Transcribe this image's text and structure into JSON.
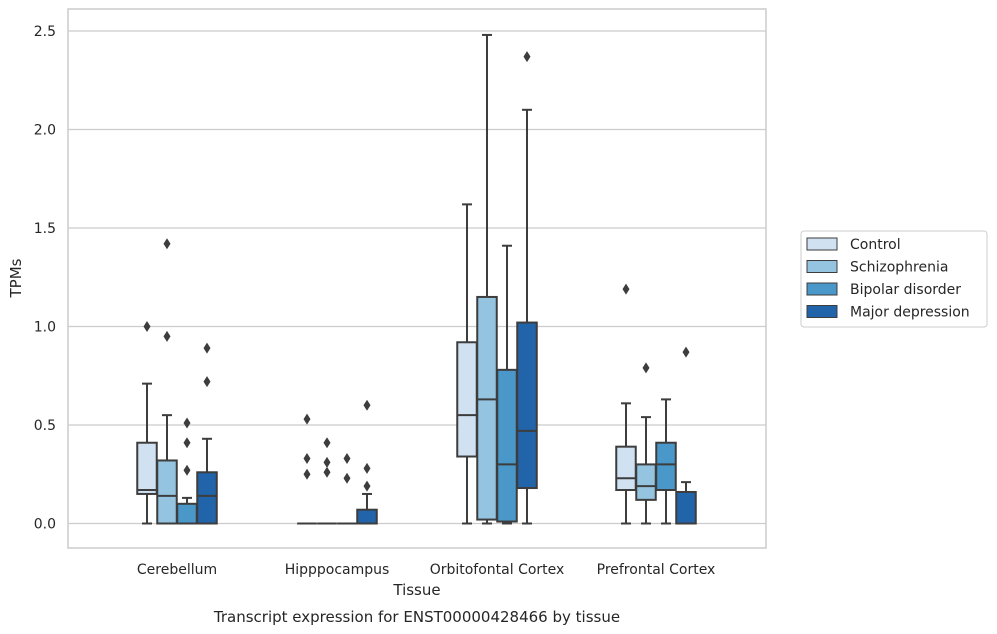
{
  "chart_data": {
    "type": "box",
    "title": "",
    "xlabel": "Tissue",
    "ylabel": "TPMs",
    "caption": "Transcript expression for ENST00000428466 by tissue",
    "ylim": [
      -0.12,
      2.62
    ],
    "yticks": [
      0.0,
      0.5,
      1.0,
      1.5,
      2.0,
      2.5
    ],
    "ytick_labels": [
      "0.0",
      "0.5",
      "1.0",
      "1.5",
      "2.0",
      "2.5"
    ],
    "grid": "horizontal",
    "legend_position": "right",
    "categories": [
      "Cerebellum",
      "Hipppocampus",
      "Orbitofontal Cortex",
      "Prefrontal Cortex"
    ],
    "series": [
      {
        "name": "Control",
        "color": "#d0e1f2",
        "boxes": [
          {
            "min": 0.0,
            "q1": 0.15,
            "median": 0.17,
            "q3": 0.41,
            "max": 0.71,
            "outliers": [
              1.0
            ]
          },
          {
            "min": 0.0,
            "q1": 0.0,
            "median": 0.0,
            "q3": 0.0,
            "max": 0.0,
            "outliers": [
              0.25,
              0.33,
              0.53
            ]
          },
          {
            "min": 0.0,
            "q1": 0.34,
            "median": 0.55,
            "q3": 0.92,
            "max": 1.62,
            "outliers": []
          },
          {
            "min": 0.0,
            "q1": 0.17,
            "median": 0.23,
            "q3": 0.39,
            "max": 0.61,
            "outliers": [
              1.19
            ]
          }
        ]
      },
      {
        "name": "Schizophrenia",
        "color": "#94c4df",
        "boxes": [
          {
            "min": 0.0,
            "q1": 0.0,
            "median": 0.14,
            "q3": 0.32,
            "max": 0.55,
            "outliers": [
              0.95,
              1.42
            ]
          },
          {
            "min": 0.0,
            "q1": 0.0,
            "median": 0.0,
            "q3": 0.0,
            "max": 0.0,
            "outliers": [
              0.26,
              0.31,
              0.41
            ]
          },
          {
            "min": 0.0,
            "q1": 0.02,
            "median": 0.63,
            "q3": 1.15,
            "max": 2.48,
            "outliers": []
          },
          {
            "min": 0.0,
            "q1": 0.12,
            "median": 0.19,
            "q3": 0.3,
            "max": 0.54,
            "outliers": [
              0.79
            ]
          }
        ]
      },
      {
        "name": "Bipolar disorder",
        "color": "#4a98c9",
        "boxes": [
          {
            "min": 0.0,
            "q1": 0.0,
            "median": 0.0,
            "q3": 0.1,
            "max": 0.13,
            "outliers": [
              0.27,
              0.41,
              0.51
            ]
          },
          {
            "min": 0.0,
            "q1": 0.0,
            "median": 0.0,
            "q3": 0.0,
            "max": 0.0,
            "outliers": [
              0.23,
              0.33
            ]
          },
          {
            "min": 0.0,
            "q1": 0.01,
            "median": 0.3,
            "q3": 0.78,
            "max": 1.41,
            "outliers": []
          },
          {
            "min": 0.0,
            "q1": 0.17,
            "median": 0.3,
            "q3": 0.41,
            "max": 0.63,
            "outliers": []
          }
        ]
      },
      {
        "name": "Major depression",
        "color": "#2164aa",
        "boxes": [
          {
            "min": 0.0,
            "q1": 0.0,
            "median": 0.14,
            "q3": 0.26,
            "max": 0.43,
            "outliers": [
              0.72,
              0.89
            ]
          },
          {
            "min": 0.0,
            "q1": 0.0,
            "median": 0.0,
            "q3": 0.07,
            "max": 0.15,
            "outliers": [
              0.19,
              0.28,
              0.6
            ]
          },
          {
            "min": 0.0,
            "q1": 0.18,
            "median": 0.47,
            "q3": 1.02,
            "max": 2.1,
            "outliers": [
              2.37
            ]
          },
          {
            "min": 0.0,
            "q1": 0.0,
            "median": 0.0,
            "q3": 0.16,
            "max": 0.21,
            "outliers": [
              0.87
            ]
          }
        ]
      }
    ]
  }
}
